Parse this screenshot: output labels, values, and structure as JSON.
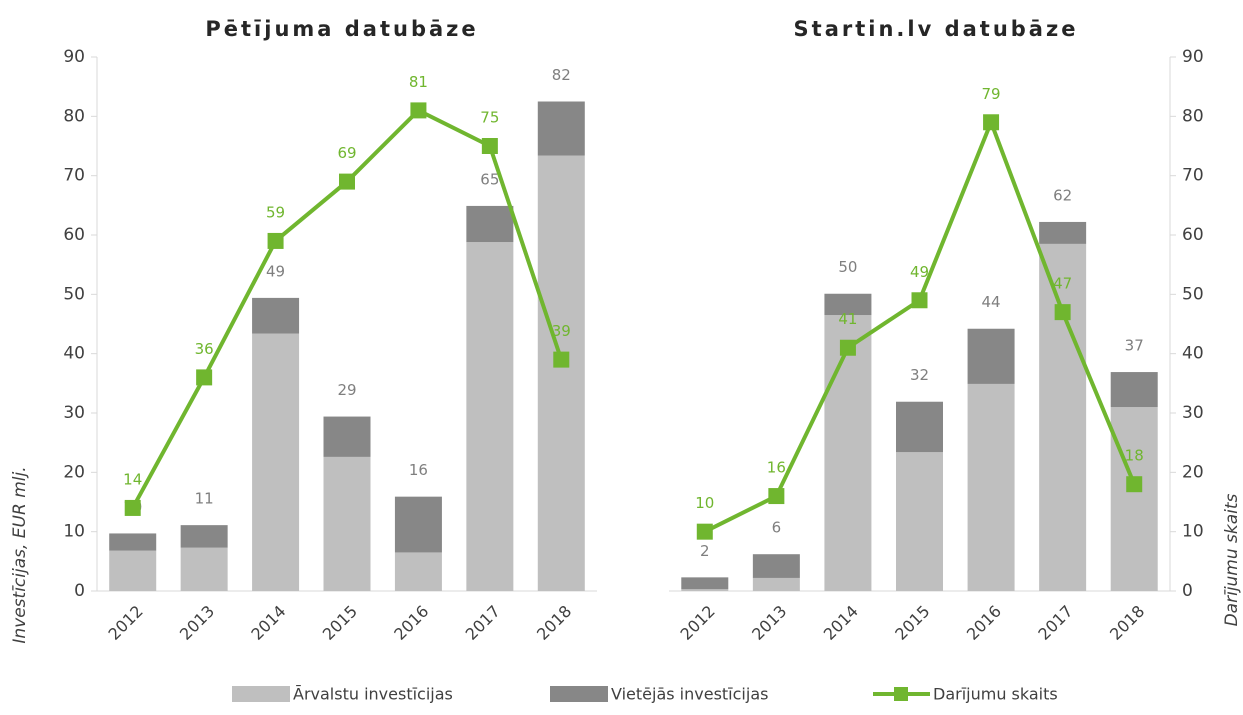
{
  "chart_data": [
    {
      "type": "bar",
      "title": "Pētījuma datubāze",
      "categories": [
        "2012",
        "2013",
        "2014",
        "2015",
        "2016",
        "2017",
        "2018"
      ],
      "series": [
        {
          "name": "Ārvalstu investīcijas",
          "color": "#bfbfbf",
          "values": [
            6.8,
            7.3,
            43.4,
            22.6,
            6.5,
            58.8,
            73.4
          ]
        },
        {
          "name": "Vietējās investīcijas",
          "color": "#878787",
          "values": [
            2.9,
            3.8,
            6.0,
            6.8,
            9.4,
            6.1,
            9.1
          ]
        },
        {
          "name": "Darījumu skaits",
          "type": "line",
          "color": "#70b62f",
          "values": [
            14,
            36,
            59,
            69,
            81,
            75,
            39
          ]
        }
      ],
      "totals": [
        10,
        11,
        49,
        29,
        16,
        65,
        82
      ],
      "ylabel": "Investīcijas, EUR mlj.",
      "ylim": [
        0,
        90
      ],
      "yticks": [
        0,
        10,
        20,
        30,
        40,
        50,
        60,
        70,
        80,
        90
      ]
    },
    {
      "type": "bar",
      "title": "Startin.lv datubāze",
      "categories": [
        "2012",
        "2013",
        "2014",
        "2015",
        "2016",
        "2017",
        "2018"
      ],
      "series": [
        {
          "name": "Ārvalstu investīcijas",
          "color": "#bfbfbf",
          "values": [
            0.3,
            2.2,
            46.5,
            23.4,
            34.9,
            58.5,
            31.0
          ]
        },
        {
          "name": "Vietējās investīcijas",
          "color": "#878787",
          "values": [
            2.0,
            4.0,
            3.6,
            8.5,
            9.3,
            3.7,
            5.9
          ]
        },
        {
          "name": "Darījumu skaits",
          "type": "line",
          "axis": "y2",
          "color": "#70b62f",
          "values": [
            10,
            16,
            41,
            49,
            79,
            47,
            18
          ]
        }
      ],
      "totals": [
        2,
        6,
        50,
        32,
        44,
        62,
        37
      ],
      "y2label": "Darījumu skaits",
      "y2lim": [
        0,
        90
      ],
      "y2ticks": [
        0,
        10,
        20,
        30,
        40,
        50,
        60,
        70,
        80,
        90
      ]
    }
  ]
}
